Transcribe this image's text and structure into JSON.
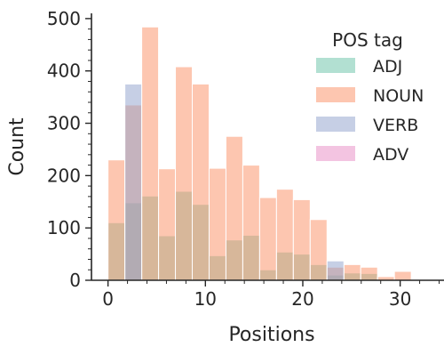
{
  "chart_data": {
    "type": "bar",
    "xlabel": "Positions",
    "ylabel": "Count",
    "xlim": [
      -1.7,
      34.5
    ],
    "ylim": [
      0,
      510
    ],
    "x_ticks": [
      0,
      10,
      20,
      30
    ],
    "y_ticks": [
      0,
      100,
      200,
      300,
      400,
      500
    ],
    "bin_width": 1.73,
    "bin_starts": [
      0.0,
      1.73,
      3.46,
      5.19,
      6.92,
      8.65,
      10.38,
      12.11,
      13.84,
      15.57,
      17.3,
      19.03,
      20.76,
      22.49,
      24.22,
      25.95,
      27.68,
      29.41
    ],
    "legend": {
      "title": "POS tag",
      "placement": "top-right"
    },
    "series": [
      {
        "name": "ADJ",
        "color": "#66c2a5",
        "values": [
          110,
          148,
          161,
          85,
          170,
          145,
          47,
          77,
          86,
          20,
          54,
          50,
          30,
          10,
          14,
          13,
          0,
          0
        ]
      },
      {
        "name": "NOUN",
        "color": "#fc8d62",
        "values": [
          230,
          335,
          484,
          213,
          408,
          375,
          214,
          275,
          220,
          158,
          174,
          154,
          116,
          25,
          30,
          25,
          7,
          17
        ]
      },
      {
        "name": "VERB",
        "color": "#8da0cb",
        "values": [
          0,
          375,
          0,
          0,
          0,
          0,
          0,
          0,
          0,
          0,
          0,
          0,
          0,
          37,
          0,
          0,
          0,
          0
        ]
      },
      {
        "name": "ADV",
        "color": "#e78ac3",
        "values": [
          0,
          0,
          0,
          0,
          0,
          0,
          0,
          0,
          0,
          0,
          0,
          0,
          0,
          0,
          0,
          0,
          0,
          0
        ]
      }
    ]
  }
}
